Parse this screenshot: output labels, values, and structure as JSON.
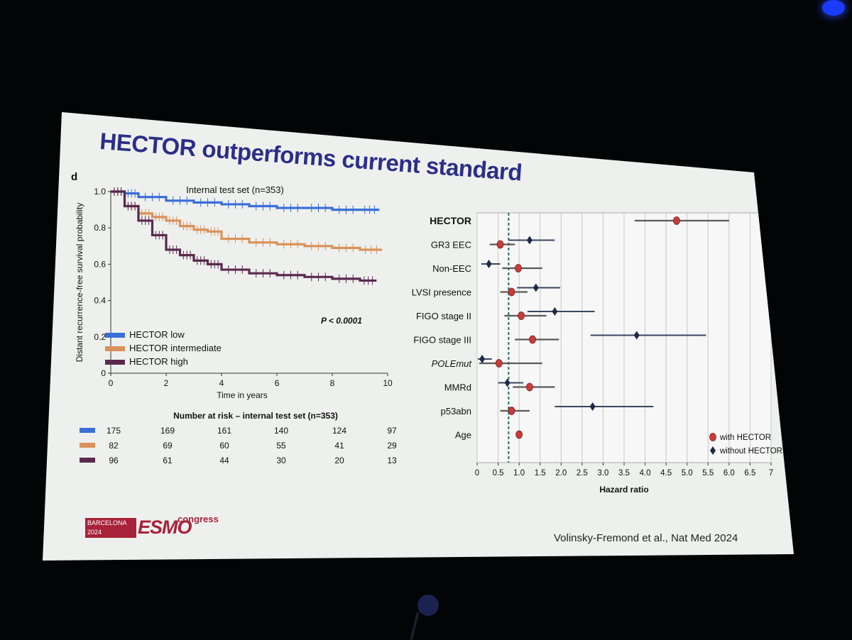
{
  "slide": {
    "title": "HECTOR outperforms current standard",
    "panel_label": "d",
    "citation": "Volinsky-Fremond  et al., Nat Med 2024",
    "logo": {
      "line1": "BARCELONA",
      "line2": "2024",
      "brand": "ESMO",
      "suffix": "congress"
    }
  },
  "chart_data": [
    {
      "type": "line",
      "title": "Internal test set (n=353)",
      "xlabel": "Time in years",
      "ylabel": "Distant recurrence-free survival probability",
      "xlim": [
        0,
        10
      ],
      "ylim": [
        0,
        1
      ],
      "x_ticks": [
        "0",
        "2",
        "4",
        "6",
        "8",
        "10"
      ],
      "y_ticks": [
        "0",
        "0.2",
        "0.4",
        "0.6",
        "0.8",
        "1.0"
      ],
      "annotation": "P < 0.0001",
      "legend_position": "bottom-left",
      "series": [
        {
          "name": "HECTOR low",
          "color": "#3a6fd8",
          "x": [
            0,
            0.5,
            1,
            2,
            3,
            4,
            5,
            6,
            7,
            8,
            9,
            9.7
          ],
          "y": [
            1.0,
            0.99,
            0.97,
            0.95,
            0.94,
            0.93,
            0.92,
            0.91,
            0.91,
            0.9,
            0.9,
            0.9
          ]
        },
        {
          "name": "HECTOR intermediate",
          "color": "#d9925a",
          "x": [
            0,
            0.5,
            1,
            1.5,
            2,
            2.5,
            3,
            3.5,
            4,
            5,
            6,
            7,
            8,
            9,
            9.8
          ],
          "y": [
            1.0,
            0.92,
            0.88,
            0.86,
            0.84,
            0.81,
            0.79,
            0.78,
            0.74,
            0.72,
            0.71,
            0.7,
            0.69,
            0.68,
            0.68
          ]
        },
        {
          "name": "HECTOR high",
          "color": "#5a2a4e",
          "x": [
            0,
            0.5,
            1,
            1.5,
            2,
            2.5,
            3,
            3.5,
            4,
            5,
            6,
            7,
            8,
            9,
            9.6
          ],
          "y": [
            1.0,
            0.92,
            0.84,
            0.76,
            0.68,
            0.65,
            0.62,
            0.6,
            0.57,
            0.55,
            0.54,
            0.53,
            0.52,
            0.51,
            0.51
          ]
        }
      ],
      "risk_table": {
        "title": "Number at risk – internal test set (n=353)",
        "rows": [
          {
            "color": "#3a6fd8",
            "values": [
              "175",
              "169",
              "161",
              "140",
              "124",
              "97"
            ]
          },
          {
            "color": "#d9925a",
            "values": [
              "82",
              "69",
              "60",
              "55",
              "41",
              "29"
            ]
          },
          {
            "color": "#5a2a4e",
            "values": [
              "96",
              "61",
              "44",
              "30",
              "20",
              "13"
            ]
          }
        ]
      }
    },
    {
      "type": "scatter",
      "subtype": "forest",
      "header": "HECTOR",
      "xlabel": "Hazard ratio",
      "xlim": [
        0,
        7
      ],
      "x_ticks": [
        "0",
        "0.5",
        "1.0",
        "1.5",
        "2.0",
        "2.5",
        "3.0",
        "3.5",
        "4.0",
        "4.5",
        "5.0",
        "5.5",
        "6.0",
        "6.5",
        "7"
      ],
      "reference_line": 0.75,
      "legend_position": "bottom-right",
      "legend": [
        {
          "name": "with HECTOR",
          "color": "#c83c3c",
          "marker": "circle"
        },
        {
          "name": "without HECTOR",
          "color": "#1e2a44",
          "marker": "diamond"
        }
      ],
      "categories": [
        "HECTOR",
        "GR3 EEC",
        "Non-EEC",
        "LVSI presence",
        "FIGO stage II",
        "FIGO stage III",
        "POLEmut",
        "MMRd",
        "p53abn",
        "Age"
      ],
      "with_hector": [
        {
          "hr": 4.75,
          "lo": 3.75,
          "hi": 6.0
        },
        {
          "hr": 0.55,
          "lo": 0.3,
          "hi": 0.9
        },
        {
          "hr": 0.98,
          "lo": 0.6,
          "hi": 1.55
        },
        {
          "hr": 0.82,
          "lo": 0.55,
          "hi": 1.2
        },
        {
          "hr": 1.05,
          "lo": 0.65,
          "hi": 1.65
        },
        {
          "hr": 1.32,
          "lo": 0.9,
          "hi": 1.95
        },
        {
          "hr": 0.52,
          "lo": 0.05,
          "hi": 1.55
        },
        {
          "hr": 1.25,
          "lo": 0.85,
          "hi": 1.85
        },
        {
          "hr": 0.82,
          "lo": 0.55,
          "hi": 1.25
        },
        {
          "hr": 1.0,
          "lo": 0.98,
          "hi": 1.02
        }
      ],
      "without_hector": [
        null,
        {
          "hr": 1.25,
          "lo": 0.75,
          "hi": 1.85
        },
        {
          "hr": 0.28,
          "lo": 0.1,
          "hi": 0.55
        },
        {
          "hr": 1.4,
          "lo": 0.95,
          "hi": 1.98
        },
        {
          "hr": 1.85,
          "lo": 1.2,
          "hi": 2.8
        },
        {
          "hr": 3.8,
          "lo": 2.7,
          "hi": 5.45
        },
        {
          "hr": 0.12,
          "lo": 0.02,
          "hi": 0.35
        },
        {
          "hr": 0.72,
          "lo": 0.5,
          "hi": 1.1
        },
        {
          "hr": 2.75,
          "lo": 1.85,
          "hi": 4.2
        },
        null
      ]
    }
  ]
}
